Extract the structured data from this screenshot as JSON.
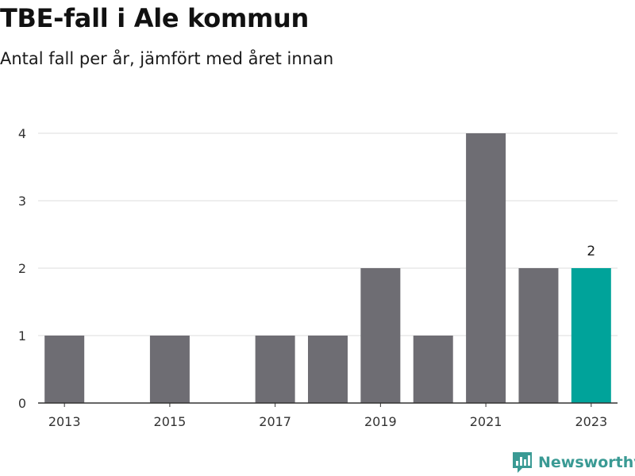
{
  "header": {
    "title": "TBE-fall i Ale kommun",
    "subtitle": "Antal fall per år, jämfört med året innan"
  },
  "brand": {
    "name": "Newsworthy",
    "icon": "newsworthy-logo-icon",
    "color": "#3a9a94"
  },
  "chart_data": {
    "type": "bar",
    "categories": [
      "2013",
      "2014",
      "2015",
      "2016",
      "2017",
      "2018",
      "2019",
      "2020",
      "2021",
      "2022",
      "2023"
    ],
    "values": [
      1,
      0,
      1,
      0,
      1,
      1,
      2,
      1,
      4,
      2,
      2
    ],
    "x_tick_labels": [
      "2013",
      "2015",
      "2017",
      "2019",
      "2021",
      "2023"
    ],
    "y_ticks": [
      0,
      1,
      2,
      3,
      4
    ],
    "ylim": [
      0,
      4
    ],
    "grid": true,
    "highlight": {
      "category": "2023",
      "label": "2"
    },
    "colors": {
      "bar": "#6e6d73",
      "highlight": "#00a39a",
      "grid": "#dddddd",
      "axis": "#333333"
    }
  }
}
